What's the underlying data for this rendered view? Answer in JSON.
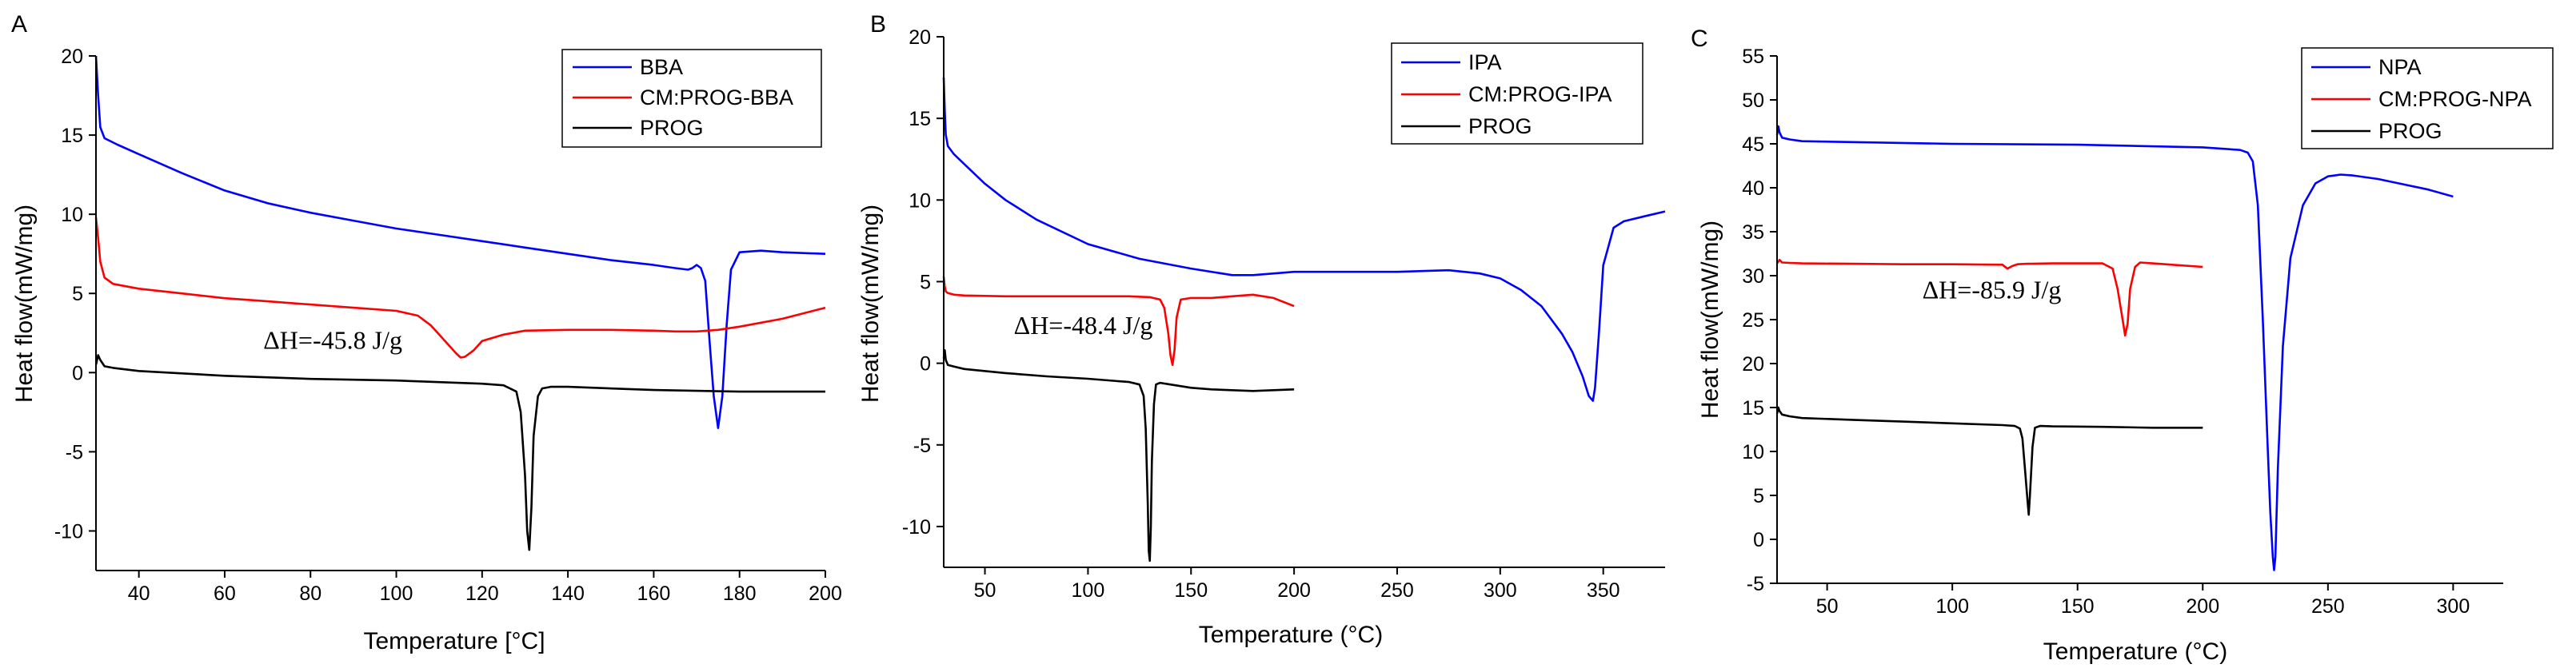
{
  "colors": {
    "blue": "#0000ff",
    "red": "#ff0000",
    "black": "#000000"
  },
  "chart_data": [
    {
      "panel": "A",
      "type": "line",
      "xlabel": "Temperature [°C]",
      "ylabel": "Heat flow(mW/mg)",
      "xlim": [
        30,
        200
      ],
      "ylim": [
        -12.5,
        20
      ],
      "xticks": [
        40,
        60,
        80,
        100,
        120,
        140,
        160,
        180,
        200
      ],
      "yticks": [
        -10,
        -5,
        0,
        5,
        10,
        15,
        20
      ],
      "legend": [
        "BBA",
        "CM:PROG-BBA",
        "PROG"
      ],
      "annotation": {
        "text": "ΔH=-45.8 J/g",
        "x": 69,
        "y": 1.5
      },
      "series": [
        {
          "name": "BBA",
          "color": "#0000ff",
          "x": [
            30,
            30.5,
            31,
            32,
            35,
            40,
            50,
            60,
            70,
            80,
            90,
            100,
            110,
            120,
            130,
            140,
            150,
            160,
            165,
            168,
            169,
            170,
            171,
            172,
            173,
            174,
            175,
            176,
            177,
            178,
            180,
            185,
            190,
            200
          ],
          "y": [
            20,
            17.5,
            15.5,
            14.8,
            14.4,
            13.8,
            12.6,
            11.5,
            10.7,
            10.1,
            9.6,
            9.1,
            8.7,
            8.3,
            7.9,
            7.5,
            7.1,
            6.8,
            6.6,
            6.5,
            6.6,
            6.8,
            6.6,
            5.8,
            2.0,
            -1.5,
            -3.5,
            -1.5,
            3.0,
            6.5,
            7.6,
            7.7,
            7.6,
            7.5
          ]
        },
        {
          "name": "CM:PROG-BBA",
          "color": "#ff0000",
          "x": [
            30,
            30.5,
            31,
            32,
            34,
            40,
            50,
            60,
            70,
            80,
            90,
            100,
            105,
            108,
            110,
            112,
            114,
            115,
            116,
            118,
            120,
            125,
            130,
            140,
            150,
            160,
            165,
            170,
            175,
            180,
            190,
            200
          ],
          "y": [
            9.8,
            8.5,
            7.0,
            6.0,
            5.6,
            5.3,
            5.0,
            4.7,
            4.5,
            4.3,
            4.1,
            3.9,
            3.6,
            3.0,
            2.4,
            1.8,
            1.2,
            0.95,
            1.0,
            1.4,
            2.0,
            2.4,
            2.65,
            2.7,
            2.7,
            2.65,
            2.6,
            2.6,
            2.7,
            2.9,
            3.4,
            4.1
          ]
        },
        {
          "name": "PROG",
          "color": "#000000",
          "x": [
            30,
            30.5,
            31,
            32,
            34,
            40,
            60,
            80,
            100,
            120,
            125,
            128,
            129,
            130,
            130.5,
            131,
            131.5,
            132,
            133,
            134,
            136,
            140,
            160,
            180,
            200
          ],
          "y": [
            0.5,
            1.1,
            0.8,
            0.4,
            0.3,
            0.1,
            -0.2,
            -0.4,
            -0.5,
            -0.7,
            -0.8,
            -1.2,
            -2.5,
            -6.5,
            -10.0,
            -11.2,
            -8.5,
            -4.0,
            -1.5,
            -1.0,
            -0.9,
            -0.9,
            -1.1,
            -1.2,
            -1.2
          ]
        }
      ]
    },
    {
      "panel": "B",
      "type": "line",
      "xlabel": "Temperature (°C)",
      "ylabel": "Heat flow(mW/mg)",
      "xlim": [
        30,
        380
      ],
      "ylim": [
        -12.5,
        20
      ],
      "xticks": [
        50,
        100,
        150,
        200,
        250,
        300,
        350
      ],
      "yticks": [
        -10,
        -5,
        0,
        5,
        10,
        15,
        20
      ],
      "legend": [
        "IPA",
        "CM:PROG-IPA",
        "PROG"
      ],
      "annotation": {
        "text": "ΔH=-48.4 J/g",
        "x": 64,
        "y": 1.8
      },
      "series": [
        {
          "name": "IPA",
          "color": "#0000ff",
          "x": [
            30,
            30.5,
            31,
            32,
            35,
            40,
            50,
            60,
            75,
            100,
            125,
            150,
            170,
            180,
            200,
            225,
            250,
            275,
            290,
            300,
            310,
            320,
            330,
            335,
            340,
            343,
            345,
            346,
            348,
            350,
            355,
            360,
            370,
            380
          ],
          "y": [
            17.5,
            15.5,
            14.0,
            13.3,
            12.8,
            12.2,
            11.0,
            10.0,
            8.8,
            7.3,
            6.4,
            5.8,
            5.4,
            5.4,
            5.6,
            5.6,
            5.6,
            5.7,
            5.5,
            5.2,
            4.5,
            3.5,
            1.8,
            0.7,
            -0.8,
            -2.0,
            -2.3,
            -1.5,
            2.0,
            6.0,
            8.3,
            8.7,
            9.0,
            9.3
          ]
        },
        {
          "name": "CM:PROG-IPA",
          "color": "#ff0000",
          "x": [
            30,
            30.5,
            31,
            32,
            35,
            40,
            60,
            80,
            100,
            120,
            130,
            135,
            137,
            139,
            140,
            141,
            142,
            143,
            145,
            150,
            160,
            170,
            180,
            190,
            200
          ],
          "y": [
            5.3,
            4.7,
            4.4,
            4.3,
            4.2,
            4.15,
            4.1,
            4.1,
            4.1,
            4.1,
            4.05,
            3.9,
            3.4,
            1.8,
            0.5,
            -0.1,
            0.8,
            2.8,
            3.9,
            4.0,
            4.0,
            4.1,
            4.2,
            4.0,
            3.5
          ]
        },
        {
          "name": "PROG",
          "color": "#000000",
          "x": [
            30,
            30.5,
            31,
            32,
            35,
            40,
            60,
            80,
            100,
            120,
            125,
            127,
            128,
            129,
            129.5,
            130,
            130.5,
            131,
            132,
            133,
            135,
            140,
            150,
            160,
            180,
            200
          ],
          "y": [
            0.3,
            0.8,
            0.2,
            -0.1,
            -0.2,
            -0.35,
            -0.6,
            -0.8,
            -0.95,
            -1.15,
            -1.3,
            -2.0,
            -4.0,
            -8.5,
            -11.5,
            -12.1,
            -10.0,
            -6.0,
            -2.5,
            -1.3,
            -1.2,
            -1.3,
            -1.5,
            -1.6,
            -1.7,
            -1.6
          ]
        }
      ]
    },
    {
      "panel": "C",
      "type": "line",
      "xlabel": "Temperature (°C)",
      "ylabel": "Heat flow(mW/mg)",
      "xlim": [
        30,
        320
      ],
      "ylim": [
        -5,
        55
      ],
      "xticks": [
        50,
        100,
        150,
        200,
        250,
        300
      ],
      "yticks": [
        -5,
        0,
        5,
        10,
        15,
        20,
        25,
        30,
        35,
        40,
        45,
        50,
        55
      ],
      "legend": [
        "NPA",
        "CM:PROG-NPA",
        "PROG"
      ],
      "annotation": {
        "text": "ΔH=-85.9 J/g",
        "x": 88,
        "y": 27.4
      },
      "series": [
        {
          "name": "NPA",
          "color": "#0000ff",
          "x": [
            30,
            30.5,
            31,
            32,
            35,
            40,
            60,
            80,
            100,
            150,
            200,
            210,
            215,
            218,
            220,
            222,
            224,
            226,
            227,
            228,
            228.5,
            229,
            230,
            232,
            235,
            240,
            245,
            250,
            255,
            260,
            270,
            280,
            290,
            300
          ],
          "y": [
            46.0,
            47.0,
            46.3,
            45.7,
            45.5,
            45.3,
            45.2,
            45.1,
            45.0,
            44.9,
            44.6,
            44.4,
            44.3,
            44.0,
            43.0,
            38.0,
            25.0,
            10.0,
            3.0,
            -2.0,
            -3.5,
            -2.0,
            8.0,
            22.0,
            32.0,
            38.0,
            40.5,
            41.3,
            41.5,
            41.4,
            41.0,
            40.4,
            39.8,
            39.0
          ]
        },
        {
          "name": "CM:PROG-NPA",
          "color": "#ff0000",
          "x": [
            30,
            31,
            32,
            35,
            40,
            60,
            80,
            100,
            120,
            122,
            124,
            126,
            130,
            140,
            150,
            160,
            164,
            166,
            168,
            169,
            170,
            171,
            173,
            175,
            180,
            190,
            200
          ],
          "y": [
            31.4,
            31.8,
            31.5,
            31.45,
            31.4,
            31.35,
            31.3,
            31.3,
            31.25,
            30.8,
            31.1,
            31.3,
            31.35,
            31.4,
            31.4,
            31.4,
            30.8,
            28.5,
            25.0,
            23.2,
            24.5,
            28.5,
            31.0,
            31.5,
            31.4,
            31.2,
            31.0
          ]
        },
        {
          "name": "PROG",
          "color": "#000000",
          "x": [
            30,
            30.5,
            31,
            32,
            35,
            40,
            60,
            80,
            100,
            120,
            125,
            127,
            128,
            129,
            130,
            130.5,
            131,
            132,
            133,
            135,
            140,
            160,
            180,
            200
          ],
          "y": [
            14.3,
            15.0,
            14.6,
            14.2,
            14.0,
            13.8,
            13.6,
            13.4,
            13.2,
            13.0,
            12.9,
            12.6,
            11.5,
            8.0,
            4.5,
            2.8,
            5.0,
            10.5,
            12.7,
            12.9,
            12.85,
            12.8,
            12.7,
            12.7
          ]
        }
      ]
    }
  ]
}
